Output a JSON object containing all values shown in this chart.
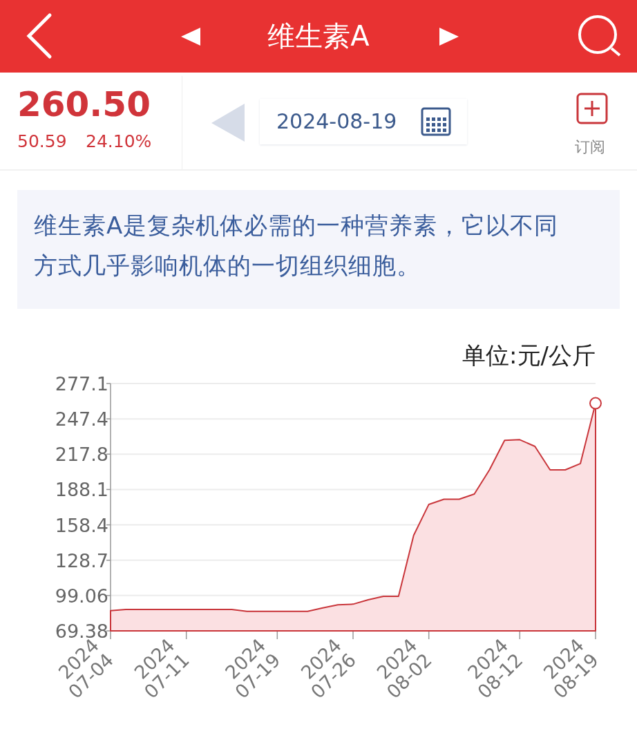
{
  "chart_data": {
    "type": "area",
    "title": "维生素A",
    "subtitle": "维生素A是复杂机体必需的一种营养素，它以不同方式几乎影响机体的一切组织细胞。",
    "annotations": [
      "260.50",
      "50.59",
      "24.10%",
      "2024-08-19",
      "订阅"
    ],
    "ylabel": "单位:元/公斤",
    "categories": [
      "2024\n07-04",
      null,
      null,
      null,
      null,
      "2024\n07-11",
      null,
      null,
      null,
      null,
      null,
      "2024\n07-19",
      null,
      null,
      null,
      null,
      "2024\n07-26",
      null,
      null,
      null,
      null,
      "2024\n08-02",
      null,
      null,
      null,
      null,
      null,
      "2024\n08-12",
      null,
      null,
      null,
      null,
      "2024\n08-19"
    ],
    "series": [
      {
        "color": "#c9363b",
        "values": [
          86.4,
          87.4,
          87.4,
          87.4,
          87.4,
          87.4,
          87.4,
          87.4,
          87.4,
          85.8,
          85.8,
          85.8,
          85.8,
          85.8,
          88.7,
          91.3,
          91.8,
          95.5,
          98.4,
          98.4,
          149.6,
          175.6,
          179.9,
          179.9,
          184.3,
          204.6,
          229.4,
          229.9,
          224.3,
          204.6,
          204.6,
          209.9,
          260.5
        ]
      }
    ],
    "ylim": [
      69.38,
      277.1
    ],
    "yticks": [
      69.38,
      99.06,
      128.7,
      158.4,
      188.1,
      217.8,
      247.4,
      277.1
    ],
    "grid": "y"
  }
}
